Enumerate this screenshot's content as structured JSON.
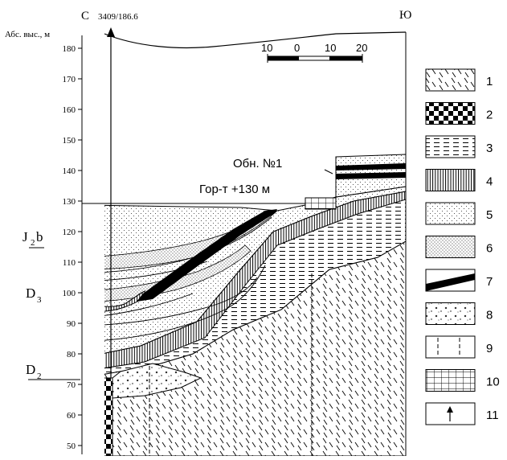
{
  "header": {
    "left_direction": "С",
    "right_direction": "Ю",
    "well_label": "3409/186.6",
    "axis_title": "Абс. выс., м"
  },
  "elevation_ticks": [
    {
      "value": 180,
      "label": "180"
    },
    {
      "value": 170,
      "label": "170"
    },
    {
      "value": 160,
      "label": "160"
    },
    {
      "value": 150,
      "label": "150"
    },
    {
      "value": 140,
      "label": "140"
    },
    {
      "value": 130,
      "label": "130"
    },
    {
      "value": 120,
      "label": "120"
    },
    {
      "value": 110,
      "label": "110"
    },
    {
      "value": 100,
      "label": "100"
    },
    {
      "value": 90,
      "label": "90"
    },
    {
      "value": 80,
      "label": "80"
    },
    {
      "value": 70,
      "label": "70"
    },
    {
      "value": 60,
      "label": "60"
    },
    {
      "value": 50,
      "label": "50"
    }
  ],
  "scale_bar": {
    "labels": [
      "10",
      "0",
      "10",
      "20"
    ]
  },
  "strata_labels": {
    "j2b_main": "J",
    "j2b_sub": "2",
    "j2b_suffix": "b",
    "d3_main": "D",
    "d3_sub": "3",
    "d2_main": "D",
    "d2_sub": "2"
  },
  "annotations": {
    "outcrop": "Обн. №1",
    "horizon": "Гор-т +130 м"
  },
  "legend": [
    {
      "number": "1",
      "pattern": "slash-lines"
    },
    {
      "number": "2",
      "pattern": "checker"
    },
    {
      "number": "3",
      "pattern": "dashed-lines"
    },
    {
      "number": "4",
      "pattern": "vertical-lines"
    },
    {
      "number": "5",
      "pattern": "fine-dots"
    },
    {
      "number": "6",
      "pattern": "dense-dots"
    },
    {
      "number": "7",
      "pattern": "black-band"
    },
    {
      "number": "8",
      "pattern": "crosses-dots"
    },
    {
      "number": "9",
      "pattern": "dashed-verticals"
    },
    {
      "number": "10",
      "pattern": "grid"
    },
    {
      "number": "11",
      "pattern": "arrow"
    }
  ]
}
